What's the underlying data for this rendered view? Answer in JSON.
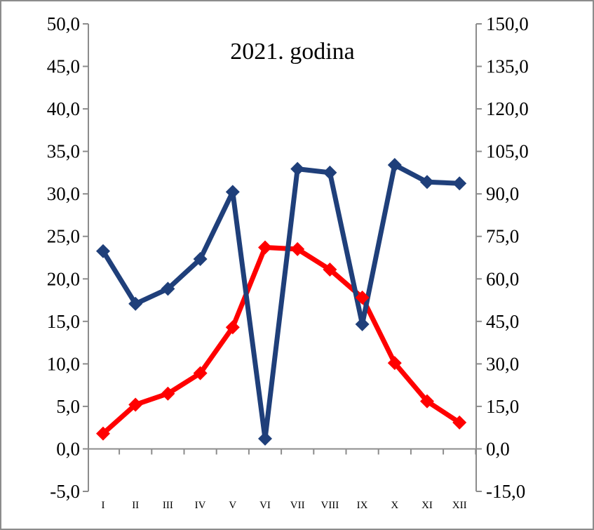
{
  "chart_data": {
    "type": "line",
    "title": "2021. godina",
    "categories": [
      "I",
      "II",
      "III",
      "IV",
      "V",
      "VI",
      "VII",
      "VIII",
      "IX",
      "X",
      "XI",
      "XII"
    ],
    "y_left": {
      "range": [
        -5,
        50
      ],
      "ticks": [
        "-5,0",
        "0,0",
        "5,0",
        "10,0",
        "15,0",
        "20,0",
        "25,0",
        "30,0",
        "35,0",
        "40,0",
        "45,0",
        "50,0"
      ]
    },
    "y_right": {
      "range": [
        -15,
        150
      ],
      "ticks": [
        "-15,0",
        "0,0",
        "15,0",
        "30,0",
        "45,0",
        "60,0",
        "75,0",
        "90,0",
        "105,0",
        "120,0",
        "135,0",
        "150,0"
      ]
    },
    "series": [
      {
        "axis": "left",
        "color": "#ff0000",
        "values": [
          1.8,
          5.2,
          6.5,
          8.9,
          14.3,
          23.7,
          23.5,
          21.1,
          17.8,
          10.1,
          5.6,
          3.1
        ]
      },
      {
        "axis": "right",
        "color": "#1f3f7a",
        "values": [
          69.8,
          51.2,
          56.5,
          67.0,
          90.7,
          3.6,
          98.8,
          97.5,
          44.0,
          100.2,
          94.2,
          93.7
        ]
      }
    ],
    "grid": false,
    "legend": "none"
  }
}
